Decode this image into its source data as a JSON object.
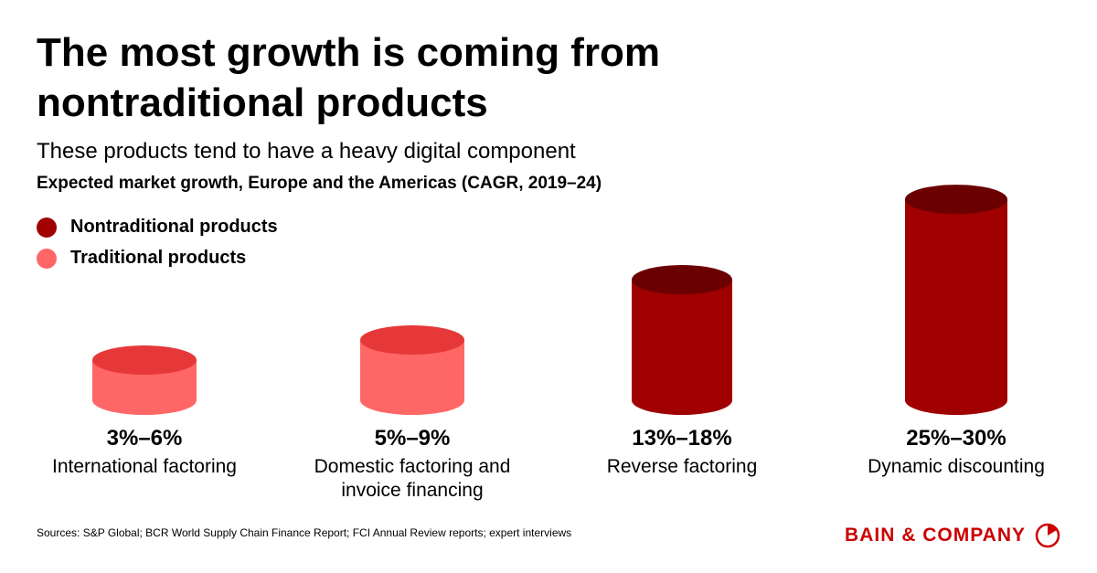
{
  "chart_data": {
    "type": "cylinder",
    "title": "The most growth is coming from nontraditional products",
    "subtitle": "These products tend to have a heavy digital component",
    "axis_title": "Expected market growth, Europe and the Americas (CAGR, 2019–24)",
    "categories": [
      "International factoring",
      "Domestic factoring and invoice financing",
      "Reverse factoring",
      "Dynamic discounting"
    ],
    "series": [
      {
        "name": "Nontraditional products",
        "color": "#a00000",
        "top_color": "#6a0000",
        "low": [
          null,
          null,
          13,
          25
        ],
        "high": [
          null,
          null,
          18,
          30
        ],
        "value_labels": [
          null,
          null,
          "13%–18%",
          "25%–30%"
        ]
      },
      {
        "name": "Traditional products",
        "color": "#ff6666",
        "top_color": "#e63838",
        "low": [
          3,
          5,
          null,
          null
        ],
        "high": [
          6,
          9,
          null,
          null
        ],
        "value_labels": [
          "3%–6%",
          "5%–9%",
          null,
          null
        ]
      }
    ],
    "source": "Sources: S&P Global; BCR World Supply Chain Finance Report; FCI Annual Review reports; expert interviews",
    "logo": "BAIN & COMPANY"
  }
}
